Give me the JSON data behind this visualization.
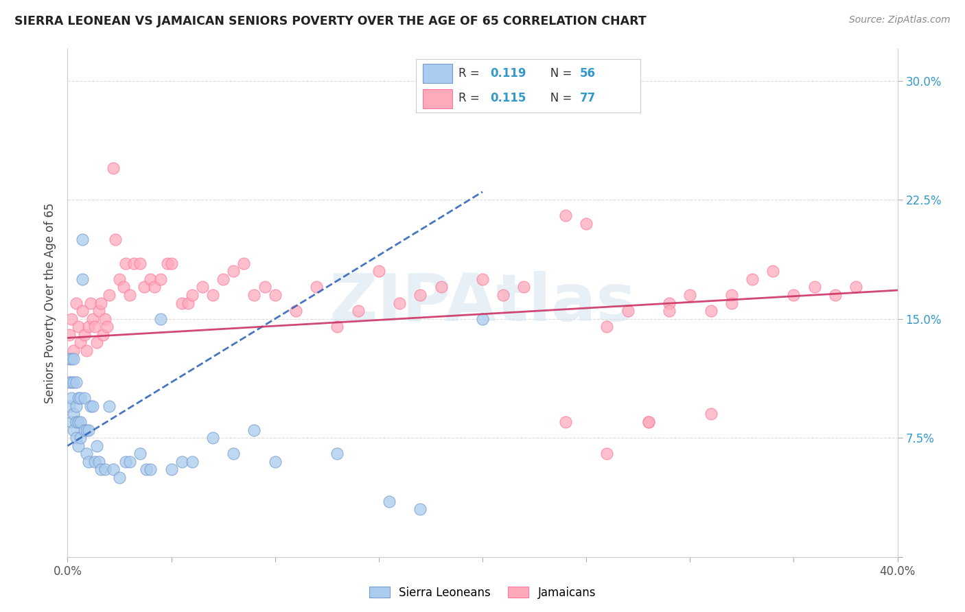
{
  "title": "SIERRA LEONEAN VS JAMAICAN SENIORS POVERTY OVER THE AGE OF 65 CORRELATION CHART",
  "source": "Source: ZipAtlas.com",
  "ylabel": "Seniors Poverty Over the Age of 65",
  "xlim": [
    0.0,
    0.4
  ],
  "ylim": [
    0.0,
    0.32
  ],
  "xticks": [
    0.0,
    0.05,
    0.1,
    0.15,
    0.2,
    0.25,
    0.3,
    0.35,
    0.4
  ],
  "xticklabels_show": [
    "0.0%",
    "",
    "",
    "",
    "",
    "",
    "",
    "",
    "40.0%"
  ],
  "yticks": [
    0.0,
    0.075,
    0.15,
    0.225,
    0.3
  ],
  "yticklabels": [
    "",
    "7.5%",
    "15.0%",
    "22.5%",
    "30.0%"
  ],
  "R_sl": "0.119",
  "N_sl": "56",
  "R_ja": "0.115",
  "N_ja": "77",
  "sl_face": "#aaccee",
  "sl_edge": "#7799cc",
  "ja_face": "#ffaabb",
  "ja_edge": "#ff7799",
  "sl_trend": "#3366bb",
  "ja_trend": "#cc3366",
  "grid_color": "#cccccc",
  "tick_color": "#3399cc",
  "watermark_color": "#d5e5f0",
  "legend_label_sl": "Sierra Leoneans",
  "legend_label_ja": "Jamaicans",
  "sl_points_x": [
    0.001,
    0.001,
    0.001,
    0.002,
    0.002,
    0.002,
    0.002,
    0.003,
    0.003,
    0.003,
    0.003,
    0.004,
    0.004,
    0.004,
    0.004,
    0.005,
    0.005,
    0.005,
    0.006,
    0.006,
    0.006,
    0.007,
    0.007,
    0.008,
    0.008,
    0.009,
    0.009,
    0.01,
    0.01,
    0.011,
    0.012,
    0.013,
    0.014,
    0.015,
    0.016,
    0.018,
    0.02,
    0.022,
    0.025,
    0.028,
    0.03,
    0.035,
    0.038,
    0.04,
    0.045,
    0.05,
    0.055,
    0.06,
    0.07,
    0.08,
    0.09,
    0.1,
    0.13,
    0.155,
    0.17,
    0.2
  ],
  "sl_points_y": [
    0.095,
    0.11,
    0.125,
    0.085,
    0.1,
    0.11,
    0.125,
    0.08,
    0.09,
    0.11,
    0.125,
    0.075,
    0.085,
    0.095,
    0.11,
    0.07,
    0.085,
    0.1,
    0.075,
    0.085,
    0.1,
    0.2,
    0.175,
    0.08,
    0.1,
    0.065,
    0.08,
    0.06,
    0.08,
    0.095,
    0.095,
    0.06,
    0.07,
    0.06,
    0.055,
    0.055,
    0.095,
    0.055,
    0.05,
    0.06,
    0.06,
    0.065,
    0.055,
    0.055,
    0.15,
    0.055,
    0.06,
    0.06,
    0.075,
    0.065,
    0.08,
    0.06,
    0.065,
    0.035,
    0.03,
    0.15
  ],
  "ja_points_x": [
    0.001,
    0.002,
    0.003,
    0.004,
    0.005,
    0.006,
    0.007,
    0.008,
    0.009,
    0.01,
    0.011,
    0.012,
    0.013,
    0.014,
    0.015,
    0.016,
    0.017,
    0.018,
    0.019,
    0.02,
    0.022,
    0.023,
    0.025,
    0.027,
    0.028,
    0.03,
    0.032,
    0.035,
    0.037,
    0.04,
    0.042,
    0.045,
    0.048,
    0.05,
    0.055,
    0.058,
    0.06,
    0.065,
    0.07,
    0.075,
    0.08,
    0.085,
    0.09,
    0.095,
    0.1,
    0.11,
    0.12,
    0.13,
    0.14,
    0.15,
    0.16,
    0.17,
    0.18,
    0.2,
    0.21,
    0.22,
    0.24,
    0.25,
    0.26,
    0.27,
    0.28,
    0.29,
    0.3,
    0.31,
    0.32,
    0.33,
    0.34,
    0.35,
    0.36,
    0.37,
    0.38,
    0.31,
    0.28,
    0.26,
    0.24,
    0.29,
    0.32
  ],
  "ja_points_y": [
    0.14,
    0.15,
    0.13,
    0.16,
    0.145,
    0.135,
    0.155,
    0.14,
    0.13,
    0.145,
    0.16,
    0.15,
    0.145,
    0.135,
    0.155,
    0.16,
    0.14,
    0.15,
    0.145,
    0.165,
    0.245,
    0.2,
    0.175,
    0.17,
    0.185,
    0.165,
    0.185,
    0.185,
    0.17,
    0.175,
    0.17,
    0.175,
    0.185,
    0.185,
    0.16,
    0.16,
    0.165,
    0.17,
    0.165,
    0.175,
    0.18,
    0.185,
    0.165,
    0.17,
    0.165,
    0.155,
    0.17,
    0.145,
    0.155,
    0.18,
    0.16,
    0.165,
    0.17,
    0.175,
    0.165,
    0.17,
    0.215,
    0.21,
    0.145,
    0.155,
    0.085,
    0.16,
    0.165,
    0.155,
    0.165,
    0.175,
    0.18,
    0.165,
    0.17,
    0.165,
    0.17,
    0.09,
    0.085,
    0.065,
    0.085,
    0.155,
    0.16
  ]
}
